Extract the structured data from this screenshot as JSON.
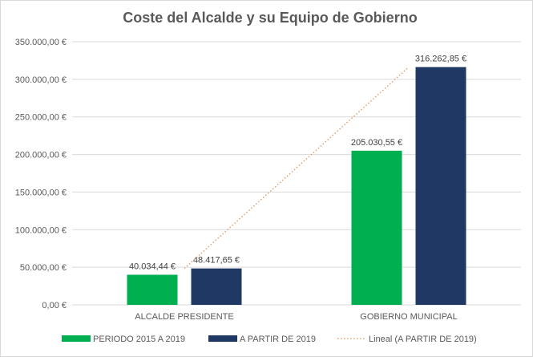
{
  "chart_data": {
    "type": "bar",
    "title": "Coste del Alcalde y su Equipo de Gobierno",
    "xlabel": "",
    "ylabel": "",
    "categories": [
      "ALCALDE PRESIDENTE",
      "GOBIERNO MUNICIPAL"
    ],
    "series": [
      {
        "name": "PERIODO 2015 A 2019",
        "values": [
          40034.44,
          205030.55
        ],
        "labels": [
          "40.034,44 €",
          "205.030,55 €"
        ],
        "color": "#00b050"
      },
      {
        "name": "A PARTIR DE 2019",
        "values": [
          48417.65,
          316262.85
        ],
        "labels": [
          "48.417,65 €",
          "316.262,85 €"
        ],
        "color": "#203864"
      }
    ],
    "trendline": {
      "name": "Lineal (A PARTIR DE 2019)",
      "type": "linear",
      "series": "A PARTIR DE 2019",
      "color": "#e0a070",
      "style": "dotted"
    },
    "ylim": [
      0,
      350000
    ],
    "yticks": [
      0,
      50000,
      100000,
      150000,
      200000,
      250000,
      300000,
      350000
    ],
    "ytick_labels": [
      "0,00 €",
      "50.000,00 €",
      "100.000,00 €",
      "150.000,00 €",
      "200.000,00 €",
      "250.000,00 €",
      "300.000,00 €",
      "350.000,00 €"
    ],
    "grid": true,
    "legend": "bottom"
  }
}
